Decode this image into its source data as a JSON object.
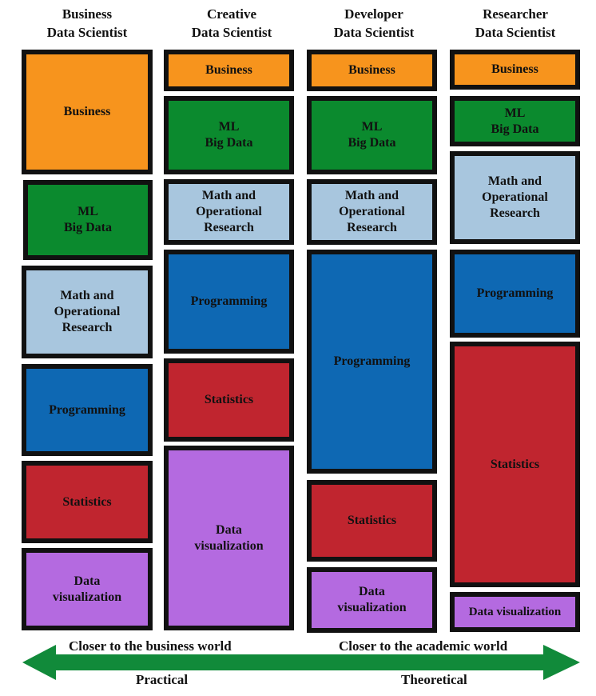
{
  "columns": [
    {
      "title": [
        "Business",
        "Data Scientist"
      ],
      "boxes": [
        {
          "key": "business",
          "lines": [
            "Business"
          ]
        },
        {
          "key": "ml",
          "lines": [
            "ML",
            "Big Data"
          ]
        },
        {
          "key": "math",
          "lines": [
            "Math and",
            "Operational",
            "Research"
          ]
        },
        {
          "key": "prog",
          "lines": [
            "Programming"
          ]
        },
        {
          "key": "stats",
          "lines": [
            "Statistics"
          ]
        },
        {
          "key": "viz",
          "lines": [
            "Data",
            "visualization"
          ]
        }
      ]
    },
    {
      "title": [
        "Creative",
        "Data Scientist"
      ],
      "boxes": [
        {
          "key": "business",
          "lines": [
            "Business"
          ]
        },
        {
          "key": "ml",
          "lines": [
            "ML",
            "Big Data"
          ]
        },
        {
          "key": "math",
          "lines": [
            "Math and",
            "Operational",
            "Research"
          ]
        },
        {
          "key": "prog",
          "lines": [
            "Programming"
          ]
        },
        {
          "key": "stats",
          "lines": [
            "Statistics"
          ]
        },
        {
          "key": "viz",
          "lines": [
            "Data",
            "visualization"
          ]
        }
      ]
    },
    {
      "title": [
        "Developer",
        "Data Scientist"
      ],
      "boxes": [
        {
          "key": "business",
          "lines": [
            "Business"
          ]
        },
        {
          "key": "ml",
          "lines": [
            "ML",
            "Big Data"
          ]
        },
        {
          "key": "math",
          "lines": [
            "Math and",
            "Operational",
            "Research"
          ]
        },
        {
          "key": "prog",
          "lines": [
            "Programming"
          ]
        },
        {
          "key": "stats",
          "lines": [
            "Statistics"
          ]
        },
        {
          "key": "viz",
          "lines": [
            "Data",
            "visualization"
          ]
        }
      ]
    },
    {
      "title": [
        "Researcher",
        "Data Scientist"
      ],
      "boxes": [
        {
          "key": "business",
          "lines": [
            "Business"
          ]
        },
        {
          "key": "ml",
          "lines": [
            "ML",
            "Big Data"
          ]
        },
        {
          "key": "math",
          "lines": [
            "Math and",
            "Operational",
            "Research"
          ]
        },
        {
          "key": "prog",
          "lines": [
            "Programming"
          ]
        },
        {
          "key": "stats",
          "lines": [
            "Statistics"
          ]
        },
        {
          "key": "viz",
          "lines": [
            "Data visualization"
          ]
        }
      ]
    }
  ],
  "axis": {
    "left_top": "Closer to the business world",
    "right_top": "Closer to the academic world",
    "left_bottom": "Practical",
    "right_bottom": "Theoretical",
    "arrow_color": "#118a3a"
  },
  "colors": {
    "business": "#f7941d",
    "ml": "#0b8a2e",
    "math": "#a8c6de",
    "prog": "#0e68b3",
    "stats": "#c0252f",
    "viz": "#b46ae0"
  }
}
